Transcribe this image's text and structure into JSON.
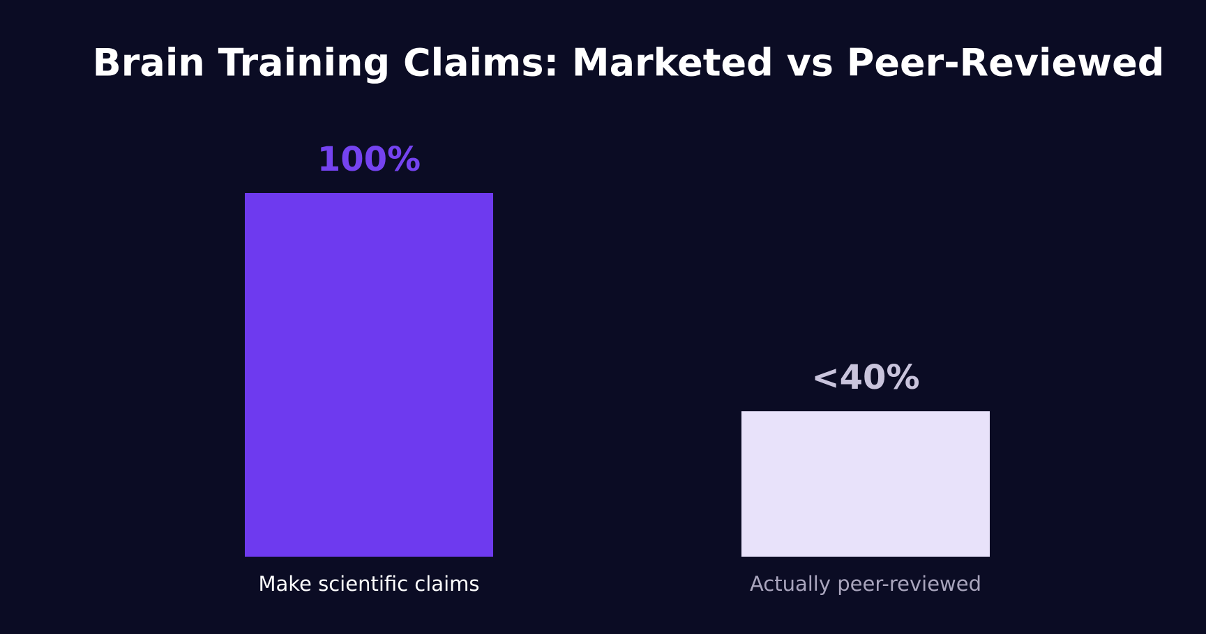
{
  "chart_data": {
    "type": "bar",
    "title": "Brain Training Claims: Marketed vs Peer-Reviewed",
    "categories": [
      "Make scientific claims",
      "Actually peer-reviewed"
    ],
    "values": [
      100,
      40
    ],
    "value_labels": [
      "100%",
      "<40%"
    ],
    "colors": [
      "#6e3aef",
      "#e8e2fa"
    ]
  }
}
